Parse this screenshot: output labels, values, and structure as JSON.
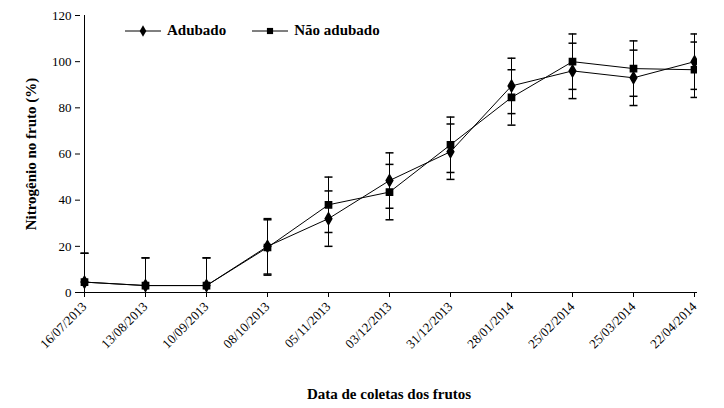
{
  "chart_data": {
    "type": "line",
    "x_label": "Data de coletas dos frutos",
    "y_label": "Nitrogênio no fruto (%)",
    "categories": [
      "16/07/2013",
      "13/08/2013",
      "10/09/2013",
      "08/10/2013",
      "05/11/2013",
      "03/12/2013",
      "31/12/2013",
      "28/01/2014",
      "25/02/2014",
      "25/03/2014",
      "22/04/2014"
    ],
    "series": [
      {
        "name": "Adubado",
        "color": "#000000",
        "marker": "diamond",
        "values": [
          4.5,
          3,
          3,
          20,
          32,
          48.5,
          61,
          89.5,
          96,
          93,
          100
        ],
        "errors": [
          12.5,
          12,
          12,
          12,
          12,
          12,
          12,
          12,
          12,
          12,
          12
        ]
      },
      {
        "name": "Não adubado",
        "color": "#000000",
        "marker": "square",
        "values": [
          4.5,
          3,
          3,
          19.5,
          38,
          43.5,
          64,
          84.5,
          100,
          97,
          96.5
        ],
        "errors": [
          12.5,
          12,
          12,
          12,
          12,
          12,
          12,
          12,
          12,
          12,
          12
        ]
      }
    ],
    "ylim": [
      0,
      120
    ],
    "yticks": [
      0,
      20,
      40,
      60,
      80,
      100,
      120
    ],
    "grid": false,
    "legend": "top-left"
  }
}
